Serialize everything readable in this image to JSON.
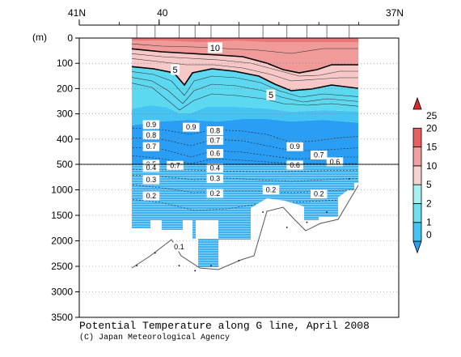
{
  "chart_data": {
    "type": "heatmap",
    "title": "Potential Temperature along G line, April 2008",
    "credit": "(C) Japan Meteorological Agency",
    "ylabel": "(m)",
    "x_ticks_top": [
      {
        "lat": 41,
        "label": "41N"
      },
      {
        "lat": 40,
        "label": "40"
      },
      {
        "lat": 37,
        "label": "37N"
      }
    ],
    "xlim": [
      41,
      37
    ],
    "y_ticks": [
      "0",
      "100",
      "200",
      "300",
      "400",
      "500",
      "1000",
      "1500",
      "2000",
      "2500",
      "3000",
      "3500"
    ],
    "y_scale": "piecewise: 0-500 m expanded, 500-3500 m compressed",
    "colorbar": {
      "levels": [
        "0",
        "1",
        "2",
        "5",
        "10",
        "15",
        "20",
        "25"
      ],
      "colors": [
        "#2a9df4",
        "#44c4f2",
        "#6ee0ee",
        "#a4f2f2",
        "#f7d2d2",
        "#f0a0a0",
        "#e86060",
        "#d92a2a"
      ]
    },
    "contour_labels": [
      {
        "value": "10",
        "lat": 39.3,
        "depth": 38
      },
      {
        "value": "5",
        "lat": 39.8,
        "depth": 125
      },
      {
        "value": "5",
        "lat": 38.6,
        "depth": 225
      },
      {
        "value": "0.9",
        "lat": 40.1,
        "depth": 343
      },
      {
        "value": "0.8",
        "lat": 40.1,
        "depth": 384
      },
      {
        "value": "0.7",
        "lat": 40.1,
        "depth": 430
      },
      {
        "value": "0.9",
        "lat": 39.6,
        "depth": 353
      },
      {
        "value": "0.8",
        "lat": 39.3,
        "depth": 367
      },
      {
        "value": "0.7",
        "lat": 39.3,
        "depth": 405
      },
      {
        "value": "0.6",
        "lat": 39.3,
        "depth": 457
      },
      {
        "value": "0.9",
        "lat": 38.3,
        "depth": 430
      },
      {
        "value": "0.7",
        "lat": 38.0,
        "depth": 463
      },
      {
        "value": "0.6",
        "lat": 37.8,
        "depth": 490
      },
      {
        "value": "0.6",
        "lat": 38.3,
        "depth": 515
      },
      {
        "value": "0.7",
        "lat": 39.8,
        "depth": 520
      },
      {
        "value": "0.5",
        "lat": 40.1,
        "depth": 500
      },
      {
        "value": "0.4",
        "lat": 40.1,
        "depth": 560
      },
      {
        "value": "0.3",
        "lat": 40.1,
        "depth": 800
      },
      {
        "value": "0.2",
        "lat": 40.1,
        "depth": 1120
      },
      {
        "value": "0.4",
        "lat": 39.3,
        "depth": 570
      },
      {
        "value": "0.3",
        "lat": 39.3,
        "depth": 780
      },
      {
        "value": "0.2",
        "lat": 39.3,
        "depth": 1070
      },
      {
        "value": "0.2",
        "lat": 38.6,
        "depth": 1000
      },
      {
        "value": "0.2",
        "lat": 38.0,
        "depth": 1080
      },
      {
        "value": "0.1",
        "lat": 39.75,
        "depth": 2120
      }
    ],
    "stations": [
      {
        "lat": 40.28,
        "bottom_depth": 2550
      },
      {
        "lat": 40.05,
        "bottom_depth": 2300
      },
      {
        "lat": 39.75,
        "bottom_depth": 2550
      },
      {
        "lat": 39.55,
        "bottom_depth": 2650
      },
      {
        "lat": 39.35,
        "bottom_depth": 2550
      },
      {
        "lat": 39.0,
        "bottom_depth": 2450
      },
      {
        "lat": 38.7,
        "bottom_depth": 1500
      },
      {
        "lat": 38.4,
        "bottom_depth": 1800
      },
      {
        "lat": 38.15,
        "bottom_depth": 1700
      },
      {
        "lat": 37.9,
        "bottom_depth": 1500
      },
      {
        "lat": 37.62,
        "bottom_depth": 850
      }
    ]
  }
}
